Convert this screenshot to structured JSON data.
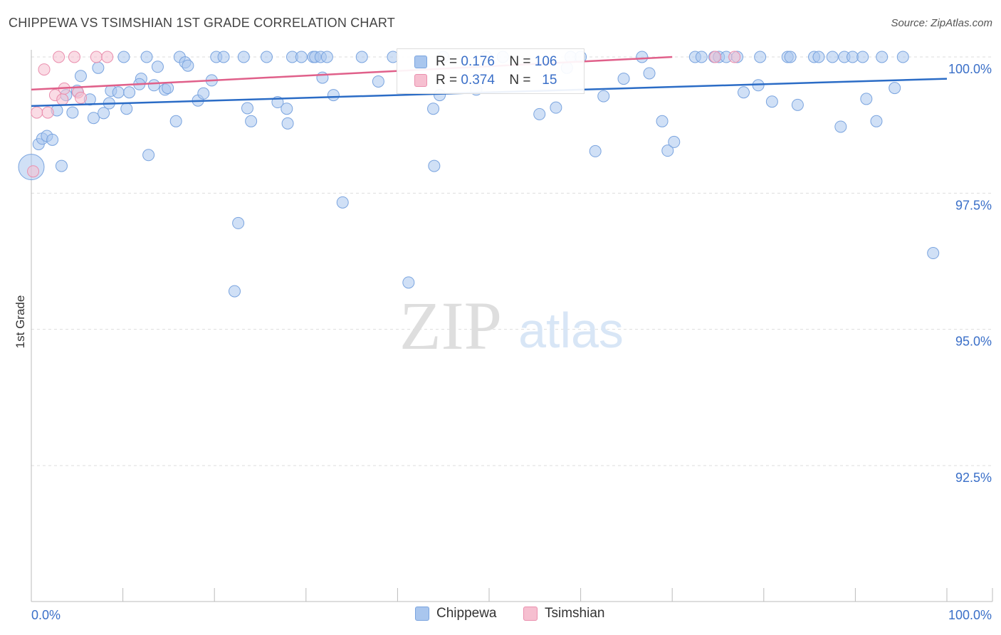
{
  "title": "CHIPPEWA VS TSIMSHIAN 1ST GRADE CORRELATION CHART",
  "source": "Source: ZipAtlas.com",
  "watermark": {
    "zip": "ZIP",
    "atlas": "atlas"
  },
  "colors": {
    "blue_fill": "#a9c6ee",
    "blue_stroke": "#7aa4df",
    "blue_line": "#2b6cc6",
    "pink_fill": "#f6bfd0",
    "pink_stroke": "#ea8fae",
    "pink_line": "#e0608a",
    "axis_text": "#3a6fc8",
    "grid": "#dddddd"
  },
  "legend": {
    "rows": [
      {
        "r_label": "R = ",
        "r_value": "0.176",
        "n_label": "N = ",
        "n_value": "106",
        "color": "#a9c6ee",
        "stroke": "#7aa4df"
      },
      {
        "r_label": "R = ",
        "r_value": "0.374",
        "n_label": "N = ",
        "n_value": "  15",
        "color": "#f6bfd0",
        "stroke": "#ea8fae"
      }
    ]
  },
  "bottom_legend": [
    {
      "label": "Chippewa",
      "color": "#a9c6ee",
      "stroke": "#7aa4df"
    },
    {
      "label": "Tsimshian",
      "color": "#f6bfd0",
      "stroke": "#ea8fae"
    }
  ],
  "chart_data": {
    "type": "scatter",
    "title": "CHIPPEWA VS TSIMSHIAN 1ST GRADE CORRELATION CHART",
    "xlabel": "",
    "ylabel": "1st Grade",
    "xlim": [
      0,
      100
    ],
    "ylim": [
      90.2,
      100.25
    ],
    "x_tick_labels": [
      {
        "value": 0,
        "label": "0.0%"
      },
      {
        "value": 100,
        "label": "100.0%"
      }
    ],
    "y_tick_labels": [
      {
        "value": 100.0,
        "label": "100.0%"
      },
      {
        "value": 97.5,
        "label": "97.5%"
      },
      {
        "value": 95.0,
        "label": "95.0%"
      },
      {
        "value": 92.5,
        "label": "92.5%"
      }
    ],
    "x_minor_ticks": [
      10,
      20,
      30,
      40,
      50,
      60,
      70,
      80,
      90,
      100
    ],
    "series": [
      {
        "name": "Chippewa",
        "trend": {
          "x": [
            0,
            100
          ],
          "y": [
            99.1,
            99.6
          ]
        },
        "points": [
          {
            "x": 0.0,
            "y": 97.98,
            "big": true
          },
          {
            "x": 0.8,
            "y": 98.4
          },
          {
            "x": 1.2,
            "y": 98.5
          },
          {
            "x": 1.7,
            "y": 98.55
          },
          {
            "x": 2.3,
            "y": 98.48
          },
          {
            "x": 3.3,
            "y": 98.0
          },
          {
            "x": 2.8,
            "y": 99.02
          },
          {
            "x": 3.8,
            "y": 99.3
          },
          {
            "x": 4.5,
            "y": 98.98
          },
          {
            "x": 5.0,
            "y": 99.38
          },
          {
            "x": 5.4,
            "y": 99.65
          },
          {
            "x": 6.4,
            "y": 99.22
          },
          {
            "x": 6.8,
            "y": 98.88
          },
          {
            "x": 7.3,
            "y": 99.8
          },
          {
            "x": 7.9,
            "y": 98.97
          },
          {
            "x": 8.5,
            "y": 99.15
          },
          {
            "x": 8.7,
            "y": 99.38
          },
          {
            "x": 9.5,
            "y": 99.35
          },
          {
            "x": 10.1,
            "y": 100.0
          },
          {
            "x": 10.4,
            "y": 99.05
          },
          {
            "x": 10.7,
            "y": 99.35
          },
          {
            "x": 12.0,
            "y": 99.6
          },
          {
            "x": 11.8,
            "y": 99.5
          },
          {
            "x": 12.6,
            "y": 100.0
          },
          {
            "x": 12.8,
            "y": 98.2
          },
          {
            "x": 13.4,
            "y": 99.48
          },
          {
            "x": 13.8,
            "y": 99.82
          },
          {
            "x": 14.6,
            "y": 99.4
          },
          {
            "x": 14.9,
            "y": 99.43
          },
          {
            "x": 15.8,
            "y": 98.82
          },
          {
            "x": 16.2,
            "y": 100.0
          },
          {
            "x": 16.8,
            "y": 99.9
          },
          {
            "x": 17.1,
            "y": 99.84
          },
          {
            "x": 18.2,
            "y": 99.2
          },
          {
            "x": 18.8,
            "y": 99.33
          },
          {
            "x": 19.7,
            "y": 99.57
          },
          {
            "x": 20.2,
            "y": 100.0
          },
          {
            "x": 21.0,
            "y": 100.0
          },
          {
            "x": 22.2,
            "y": 95.7
          },
          {
            "x": 22.6,
            "y": 96.95
          },
          {
            "x": 23.2,
            "y": 100.0
          },
          {
            "x": 23.6,
            "y": 99.06
          },
          {
            "x": 24.0,
            "y": 98.82
          },
          {
            "x": 25.7,
            "y": 100.0
          },
          {
            "x": 26.9,
            "y": 99.17
          },
          {
            "x": 27.9,
            "y": 99.05
          },
          {
            "x": 28.0,
            "y": 98.78
          },
          {
            "x": 28.5,
            "y": 100.0
          },
          {
            "x": 29.5,
            "y": 100.0
          },
          {
            "x": 30.8,
            "y": 100.0
          },
          {
            "x": 31.0,
            "y": 100.0
          },
          {
            "x": 31.6,
            "y": 100.0
          },
          {
            "x": 31.8,
            "y": 99.62
          },
          {
            "x": 32.3,
            "y": 100.0
          },
          {
            "x": 33.0,
            "y": 99.3
          },
          {
            "x": 34.0,
            "y": 97.33
          },
          {
            "x": 36.1,
            "y": 100.0
          },
          {
            "x": 37.9,
            "y": 99.55
          },
          {
            "x": 39.5,
            "y": 100.0
          },
          {
            "x": 41.2,
            "y": 95.86
          },
          {
            "x": 43.9,
            "y": 99.05
          },
          {
            "x": 44.0,
            "y": 98.0
          },
          {
            "x": 44.6,
            "y": 99.3
          },
          {
            "x": 45.0,
            "y": 100.0
          },
          {
            "x": 48.6,
            "y": 99.4
          },
          {
            "x": 49.7,
            "y": 100.0
          },
          {
            "x": 51.5,
            "y": 100.0
          },
          {
            "x": 55.5,
            "y": 98.95
          },
          {
            "x": 57.3,
            "y": 99.07
          },
          {
            "x": 58.5,
            "y": 99.8
          },
          {
            "x": 58.9,
            "y": 100.0
          },
          {
            "x": 60.0,
            "y": 100.0
          },
          {
            "x": 61.6,
            "y": 98.27
          },
          {
            "x": 62.5,
            "y": 99.28
          },
          {
            "x": 64.7,
            "y": 99.6
          },
          {
            "x": 66.7,
            "y": 100.0
          },
          {
            "x": 67.5,
            "y": 99.7
          },
          {
            "x": 68.9,
            "y": 98.82
          },
          {
            "x": 69.5,
            "y": 98.28
          },
          {
            "x": 70.2,
            "y": 98.44
          },
          {
            "x": 72.5,
            "y": 100.0
          },
          {
            "x": 73.2,
            "y": 100.0
          },
          {
            "x": 74.6,
            "y": 100.0
          },
          {
            "x": 75.1,
            "y": 100.0
          },
          {
            "x": 75.9,
            "y": 100.0
          },
          {
            "x": 77.1,
            "y": 100.0
          },
          {
            "x": 77.8,
            "y": 99.35
          },
          {
            "x": 79.4,
            "y": 99.48
          },
          {
            "x": 79.6,
            "y": 100.0
          },
          {
            "x": 80.9,
            "y": 99.18
          },
          {
            "x": 82.6,
            "y": 100.0
          },
          {
            "x": 82.9,
            "y": 100.0
          },
          {
            "x": 83.7,
            "y": 99.12
          },
          {
            "x": 85.5,
            "y": 100.0
          },
          {
            "x": 86.0,
            "y": 100.0
          },
          {
            "x": 87.5,
            "y": 100.0
          },
          {
            "x": 88.4,
            "y": 98.72
          },
          {
            "x": 88.8,
            "y": 100.0
          },
          {
            "x": 89.7,
            "y": 100.0
          },
          {
            "x": 90.8,
            "y": 100.0
          },
          {
            "x": 91.2,
            "y": 99.23
          },
          {
            "x": 92.3,
            "y": 98.82
          },
          {
            "x": 92.9,
            "y": 100.0
          },
          {
            "x": 94.3,
            "y": 99.43
          },
          {
            "x": 95.2,
            "y": 100.0
          },
          {
            "x": 98.5,
            "y": 96.4
          }
        ]
      },
      {
        "name": "Tsimshian",
        "trend": {
          "x": [
            0,
            70
          ],
          "y": [
            99.4,
            100.0
          ]
        },
        "points": [
          {
            "x": 0.2,
            "y": 97.9
          },
          {
            "x": 0.6,
            "y": 98.98
          },
          {
            "x": 1.4,
            "y": 99.77
          },
          {
            "x": 1.8,
            "y": 98.98
          },
          {
            "x": 2.6,
            "y": 99.3
          },
          {
            "x": 3.0,
            "y": 100.0
          },
          {
            "x": 3.4,
            "y": 99.22
          },
          {
            "x": 3.6,
            "y": 99.42
          },
          {
            "x": 4.7,
            "y": 100.0
          },
          {
            "x": 5.1,
            "y": 99.35
          },
          {
            "x": 5.4,
            "y": 99.25
          },
          {
            "x": 7.1,
            "y": 100.0
          },
          {
            "x": 8.3,
            "y": 100.0
          },
          {
            "x": 74.7,
            "y": 100.0
          },
          {
            "x": 76.8,
            "y": 100.0
          }
        ]
      }
    ]
  }
}
